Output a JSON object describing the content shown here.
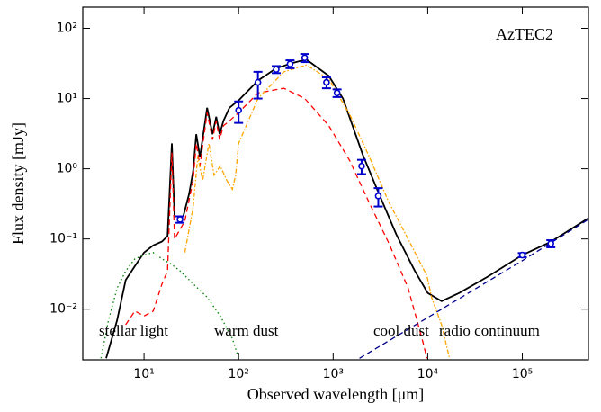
{
  "chart_data": {
    "type": "line",
    "title": "AzTEC2",
    "x_label": "Observed wavelength [μm]",
    "y_label": "Flux density [mJy]",
    "log_x": true,
    "log_y": true,
    "xlim": [
      2.25,
      500000
    ],
    "ylim": [
      0.0019,
      200
    ],
    "xticks": [
      {
        "value": 10,
        "label": "10¹"
      },
      {
        "value": 100,
        "label": "10²"
      },
      {
        "value": 1000,
        "label": "10³"
      },
      {
        "value": 10000,
        "label": "10⁴"
      },
      {
        "value": 100000,
        "label": "10⁵"
      }
    ],
    "yticks": [
      {
        "value": 0.01,
        "label": "10⁻²"
      },
      {
        "value": 0.1,
        "label": "10⁻¹"
      },
      {
        "value": 1,
        "label": "10⁰"
      },
      {
        "value": 10,
        "label": "10¹"
      },
      {
        "value": 100,
        "label": "10²"
      }
    ],
    "series": [
      {
        "color": "#000000",
        "dash": "none",
        "width": 1.8,
        "x": [
          3.98,
          5.18,
          6.4,
          8.0,
          10,
          12.5,
          15.5,
          17.7,
          19.7,
          21,
          26,
          30,
          33,
          35.6,
          39,
          46.5,
          53,
          58,
          63,
          69,
          80,
          100,
          160,
          250,
          370,
          520,
          900,
          1270,
          2050,
          3050,
          4650,
          7300,
          10000,
          14000,
          21500,
          43000,
          100000,
          200000,
          500000
        ],
        "values": [
          0.002,
          0.0069,
          0.026,
          0.041,
          0.064,
          0.081,
          0.092,
          0.11,
          2.3,
          0.21,
          0.21,
          0.44,
          0.92,
          3.1,
          1.47,
          7.4,
          3.1,
          5.5,
          3.1,
          4.8,
          7.4,
          9.4,
          18,
          27,
          32,
          36,
          21,
          10,
          1.6,
          0.44,
          0.116,
          0.035,
          0.017,
          0.013,
          0.017,
          0.029,
          0.059,
          0.091,
          0.198
        ]
      },
      {
        "name": "stellar light",
        "color": "#008000",
        "dash": "1.5 3",
        "width": 1.3,
        "x": [
          3.5,
          4.2,
          5.2,
          6.4,
          8,
          10,
          12.5,
          15.5,
          19.3,
          24,
          33,
          46,
          64,
          86,
          100
        ],
        "values": [
          0.002,
          0.0069,
          0.02,
          0.035,
          0.052,
          0.059,
          0.064,
          0.052,
          0.044,
          0.035,
          0.023,
          0.015,
          0.008,
          0.0038,
          0.002
        ]
      },
      {
        "name": "warm dust",
        "color": "#ff0000",
        "dash": "6 4",
        "width": 1.3,
        "x": [
          6.4,
          8,
          10,
          12.5,
          15.5,
          17.7,
          19.7,
          21,
          27,
          33,
          35.6,
          39,
          46.5,
          53,
          58,
          63,
          69,
          80,
          100,
          160,
          300,
          500,
          900,
          1500,
          2400,
          3900,
          6200,
          8700,
          9800
        ],
        "values": [
          0.006,
          0.0094,
          0.008,
          0.0094,
          0.023,
          0.035,
          1.7,
          0.1,
          0.18,
          0.68,
          2.3,
          1.1,
          6.3,
          2.6,
          4.8,
          2.6,
          4.1,
          4.8,
          6.3,
          12,
          14,
          10,
          4.1,
          1.3,
          0.33,
          0.086,
          0.02,
          0.0038,
          0.002
        ]
      },
      {
        "name": "cool dust",
        "color": "#ffa500",
        "dash": "5 2 1.5 2",
        "width": 1.3,
        "x": [
          27,
          33,
          37,
          41.6,
          48.5,
          55,
          64,
          75,
          86,
          93,
          100,
          160,
          300,
          520,
          900,
          1500,
          2400,
          3900,
          6200,
          9800,
          11000,
          14000,
          17000
        ],
        "values": [
          0.064,
          0.28,
          1.5,
          0.68,
          2.3,
          0.81,
          1.1,
          0.68,
          0.51,
          0.81,
          2.3,
          10,
          24,
          30,
          19,
          5.9,
          1.5,
          0.33,
          0.1,
          0.03,
          0.0146,
          0.006,
          0.002
        ]
      },
      {
        "name": "radio continuum",
        "color": "#00008b",
        "dash": "6 4",
        "width": 1.3,
        "x": [
          1900,
          10000,
          100000,
          500000
        ],
        "values": [
          0.002,
          0.0076,
          0.049,
          0.19
        ]
      }
    ],
    "points": {
      "color": "#0000cd",
      "x": [
        24,
        100,
        160,
        250,
        350,
        500,
        850,
        1100,
        2000,
        3000,
        100000,
        200000
      ],
      "values": [
        0.19,
        6.8,
        17,
        26,
        31,
        38,
        17,
        12,
        1.09,
        0.41,
        0.059,
        0.086
      ],
      "errors": [
        0.02,
        2.3,
        7,
        3,
        4,
        5,
        3,
        1.5,
        0.25,
        0.12,
        0.004,
        0.01
      ]
    }
  }
}
